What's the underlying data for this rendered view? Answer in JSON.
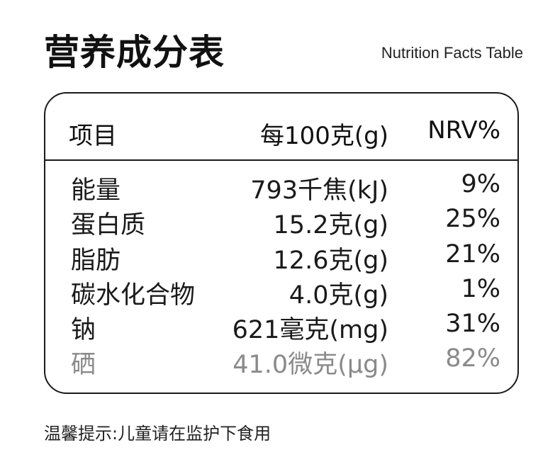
{
  "title": "营养成分表",
  "subtitle": "Nutrition Facts Table",
  "table": {
    "headers": {
      "item": "项目",
      "per100": "每100克(g)",
      "nrv": "NRV%"
    },
    "rows": [
      {
        "name": "能量",
        "value": "793千焦(kJ)",
        "nrv": "9%"
      },
      {
        "name": "蛋白质",
        "value": "15.2克(g)",
        "nrv": "25%"
      },
      {
        "name": "脂肪",
        "value": "12.6克(g)",
        "nrv": "21%"
      },
      {
        "name": "碳水化合物",
        "value": "4.0克(g)",
        "nrv": "1%"
      },
      {
        "name": "钠",
        "value": "621毫克(mg)",
        "nrv": "31%"
      },
      {
        "name": "硒",
        "value": "41.0微克(μg)",
        "nrv": "82%"
      }
    ]
  },
  "footer": "温馨提示:儿童请在监护下食用",
  "colors": {
    "text": "#1a1a1a",
    "muted": "#8a8a8a",
    "border": "#1a1a1a",
    "background": "#ffffff"
  }
}
